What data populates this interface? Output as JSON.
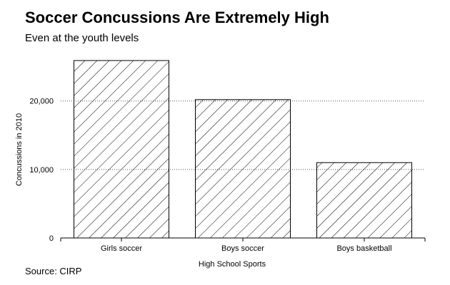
{
  "header": {
    "title": "Soccer Concussions Are Extremely High",
    "subtitle": "Even at the youth levels"
  },
  "footer": {
    "source": "Source: CIRP"
  },
  "chart_data": {
    "type": "bar",
    "title": "Soccer Concussions Are Extremely High",
    "subtitle": "Even at the youth levels",
    "categories": [
      "Girls soccer",
      "Boys soccer",
      "Boys basketball"
    ],
    "values": [
      25900,
      20200,
      11000
    ],
    "xlabel": "High School Sports",
    "ylabel": "Concussions in 2010",
    "ylim": [
      0,
      26000
    ],
    "yticks": [
      0,
      10000,
      20000
    ],
    "ytick_labels": [
      "0",
      "10,000",
      "20,000"
    ],
    "grid": "horizontal dotted",
    "bar_fill": "diagonal hatch",
    "colors": {
      "bar_stroke": "#000000",
      "hatch": "#000000",
      "grid": "#555555",
      "background": "#ffffff"
    }
  }
}
